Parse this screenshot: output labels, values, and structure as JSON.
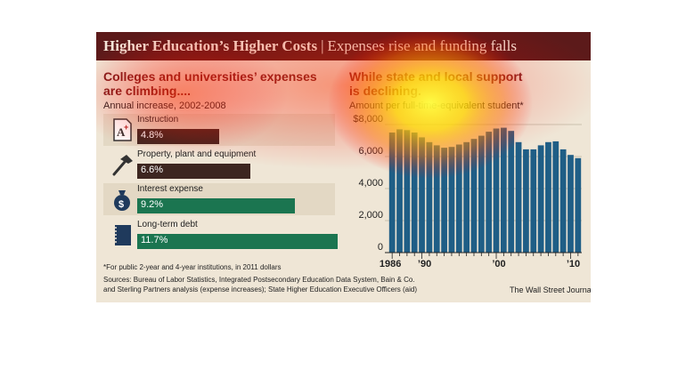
{
  "header": {
    "title": "Higher Education’s Higher Costs",
    "separator": "|",
    "subtitle": "Expenses rise and funding falls"
  },
  "left_panel": {
    "heading_line1": "Colleges and universities’ expenses",
    "heading_line2": "are climbing....",
    "subheading": "Annual increase, 2002-2008"
  },
  "right_panel": {
    "heading_line1": "While state and local support",
    "heading_line2": "is declining.",
    "subheading": "Amount per full-time-equivalent student*"
  },
  "footer": {
    "footnote": "*For public 2-year and 4-year institutions, in 2011 dollars",
    "sources_line1": "Sources: Bureau of Labor Statistics, Integrated Postsecondary Education Data System, Bain & Co.",
    "sources_line2": "and Sterling Partners analysis (expense increases); State Higher Education Executive Officers (aid)",
    "credit": "The Wall Street Journal"
  },
  "colors": {
    "title_bar": "#5c1a1a",
    "background": "#efe6d6",
    "heading": "#7a1d1d",
    "bar_dark": "#3d2620",
    "bar_green": "#1b7550",
    "column_blue": "#1f5e86"
  },
  "icons": [
    "a-plus-paper-icon",
    "hammer-icon",
    "money-bag-icon",
    "notebook-icon"
  ],
  "chart_data": [
    {
      "type": "bar",
      "orientation": "horizontal",
      "categories": [
        "Instruction",
        "Property, plant and equipment",
        "Interest expense",
        "Long-term debt"
      ],
      "values": [
        4.8,
        6.6,
        9.2,
        11.7
      ],
      "value_labels": [
        "4.8%",
        "6.6%",
        "9.2%",
        "11.7%"
      ],
      "xlim": [
        0,
        11.7
      ]
    },
    {
      "type": "bar",
      "x": [
        1986,
        1987,
        1988,
        1989,
        1990,
        1991,
        1992,
        1993,
        1994,
        1995,
        1996,
        1997,
        1998,
        1999,
        2000,
        2001,
        2002,
        2003,
        2004,
        2005,
        2006,
        2007,
        2008,
        2009,
        2010,
        2011
      ],
      "values": [
        7500,
        7700,
        7650,
        7500,
        7200,
        6900,
        6700,
        6550,
        6600,
        6750,
        6900,
        7100,
        7300,
        7550,
        7750,
        7800,
        7600,
        6900,
        6450,
        6450,
        6700,
        6900,
        6950,
        6450,
        6100,
        5900
      ],
      "ylim": [
        0,
        8000
      ],
      "y_ticks": [
        0,
        2000,
        4000,
        6000,
        8000
      ],
      "y_tick_labels": [
        "0",
        "2,000",
        "4,000",
        "6,000",
        "$8,000"
      ],
      "x_tick_labels": [
        "1986",
        "’90",
        "’00",
        "’10"
      ],
      "x_tick_years": [
        1986,
        1990,
        2000,
        2010
      ],
      "grid": true
    }
  ]
}
